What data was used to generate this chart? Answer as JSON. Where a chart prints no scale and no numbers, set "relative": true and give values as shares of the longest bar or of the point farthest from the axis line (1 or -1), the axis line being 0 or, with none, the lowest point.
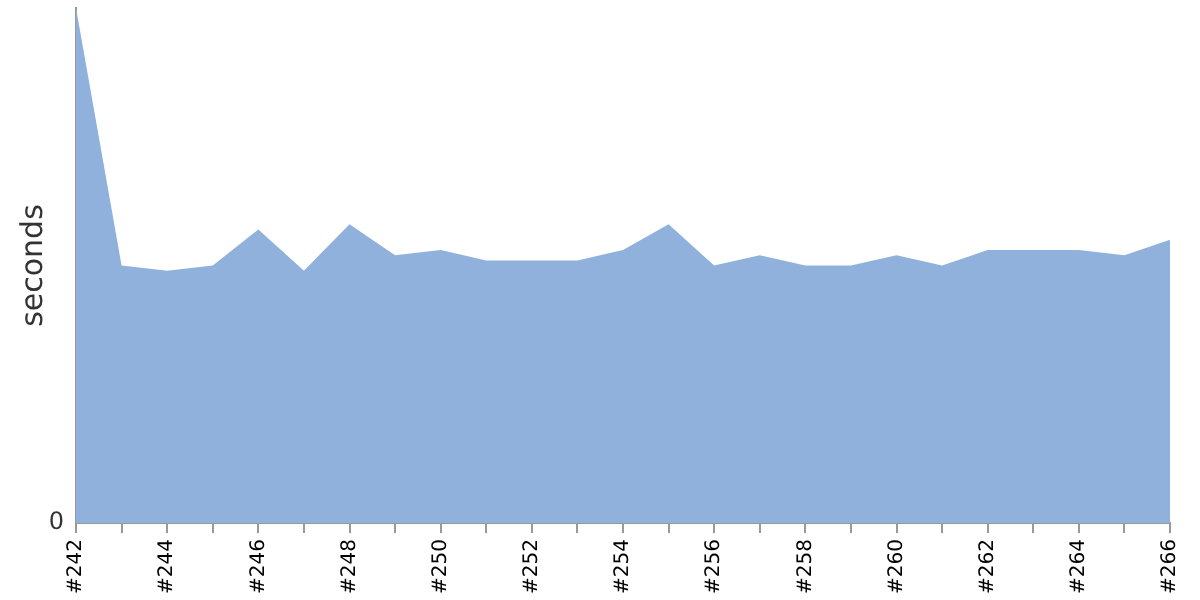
{
  "chart_data": {
    "type": "area",
    "ylabel": "seconds",
    "relative": true,
    "color": "#8fb1db",
    "grid": false,
    "legend": false,
    "categories": [
      "#242",
      null,
      "#244",
      null,
      "#246",
      null,
      "#248",
      null,
      "#250",
      null,
      "#252",
      null,
      "#254",
      null,
      "#256",
      null,
      "#258",
      null,
      "#260",
      null,
      "#262",
      null,
      "#264",
      null,
      "#266"
    ],
    "values": [
      1,
      0.5,
      0.49,
      0.5,
      0.57,
      0.49,
      0.58,
      0.52,
      0.53,
      0.51,
      0.51,
      0.51,
      0.53,
      0.58,
      0.5,
      0.52,
      0.5,
      0.5,
      0.52,
      0.5,
      0.53,
      0.53,
      0.53,
      0.52,
      0.55
    ],
    "annotations": [
      "0"
    ]
  }
}
